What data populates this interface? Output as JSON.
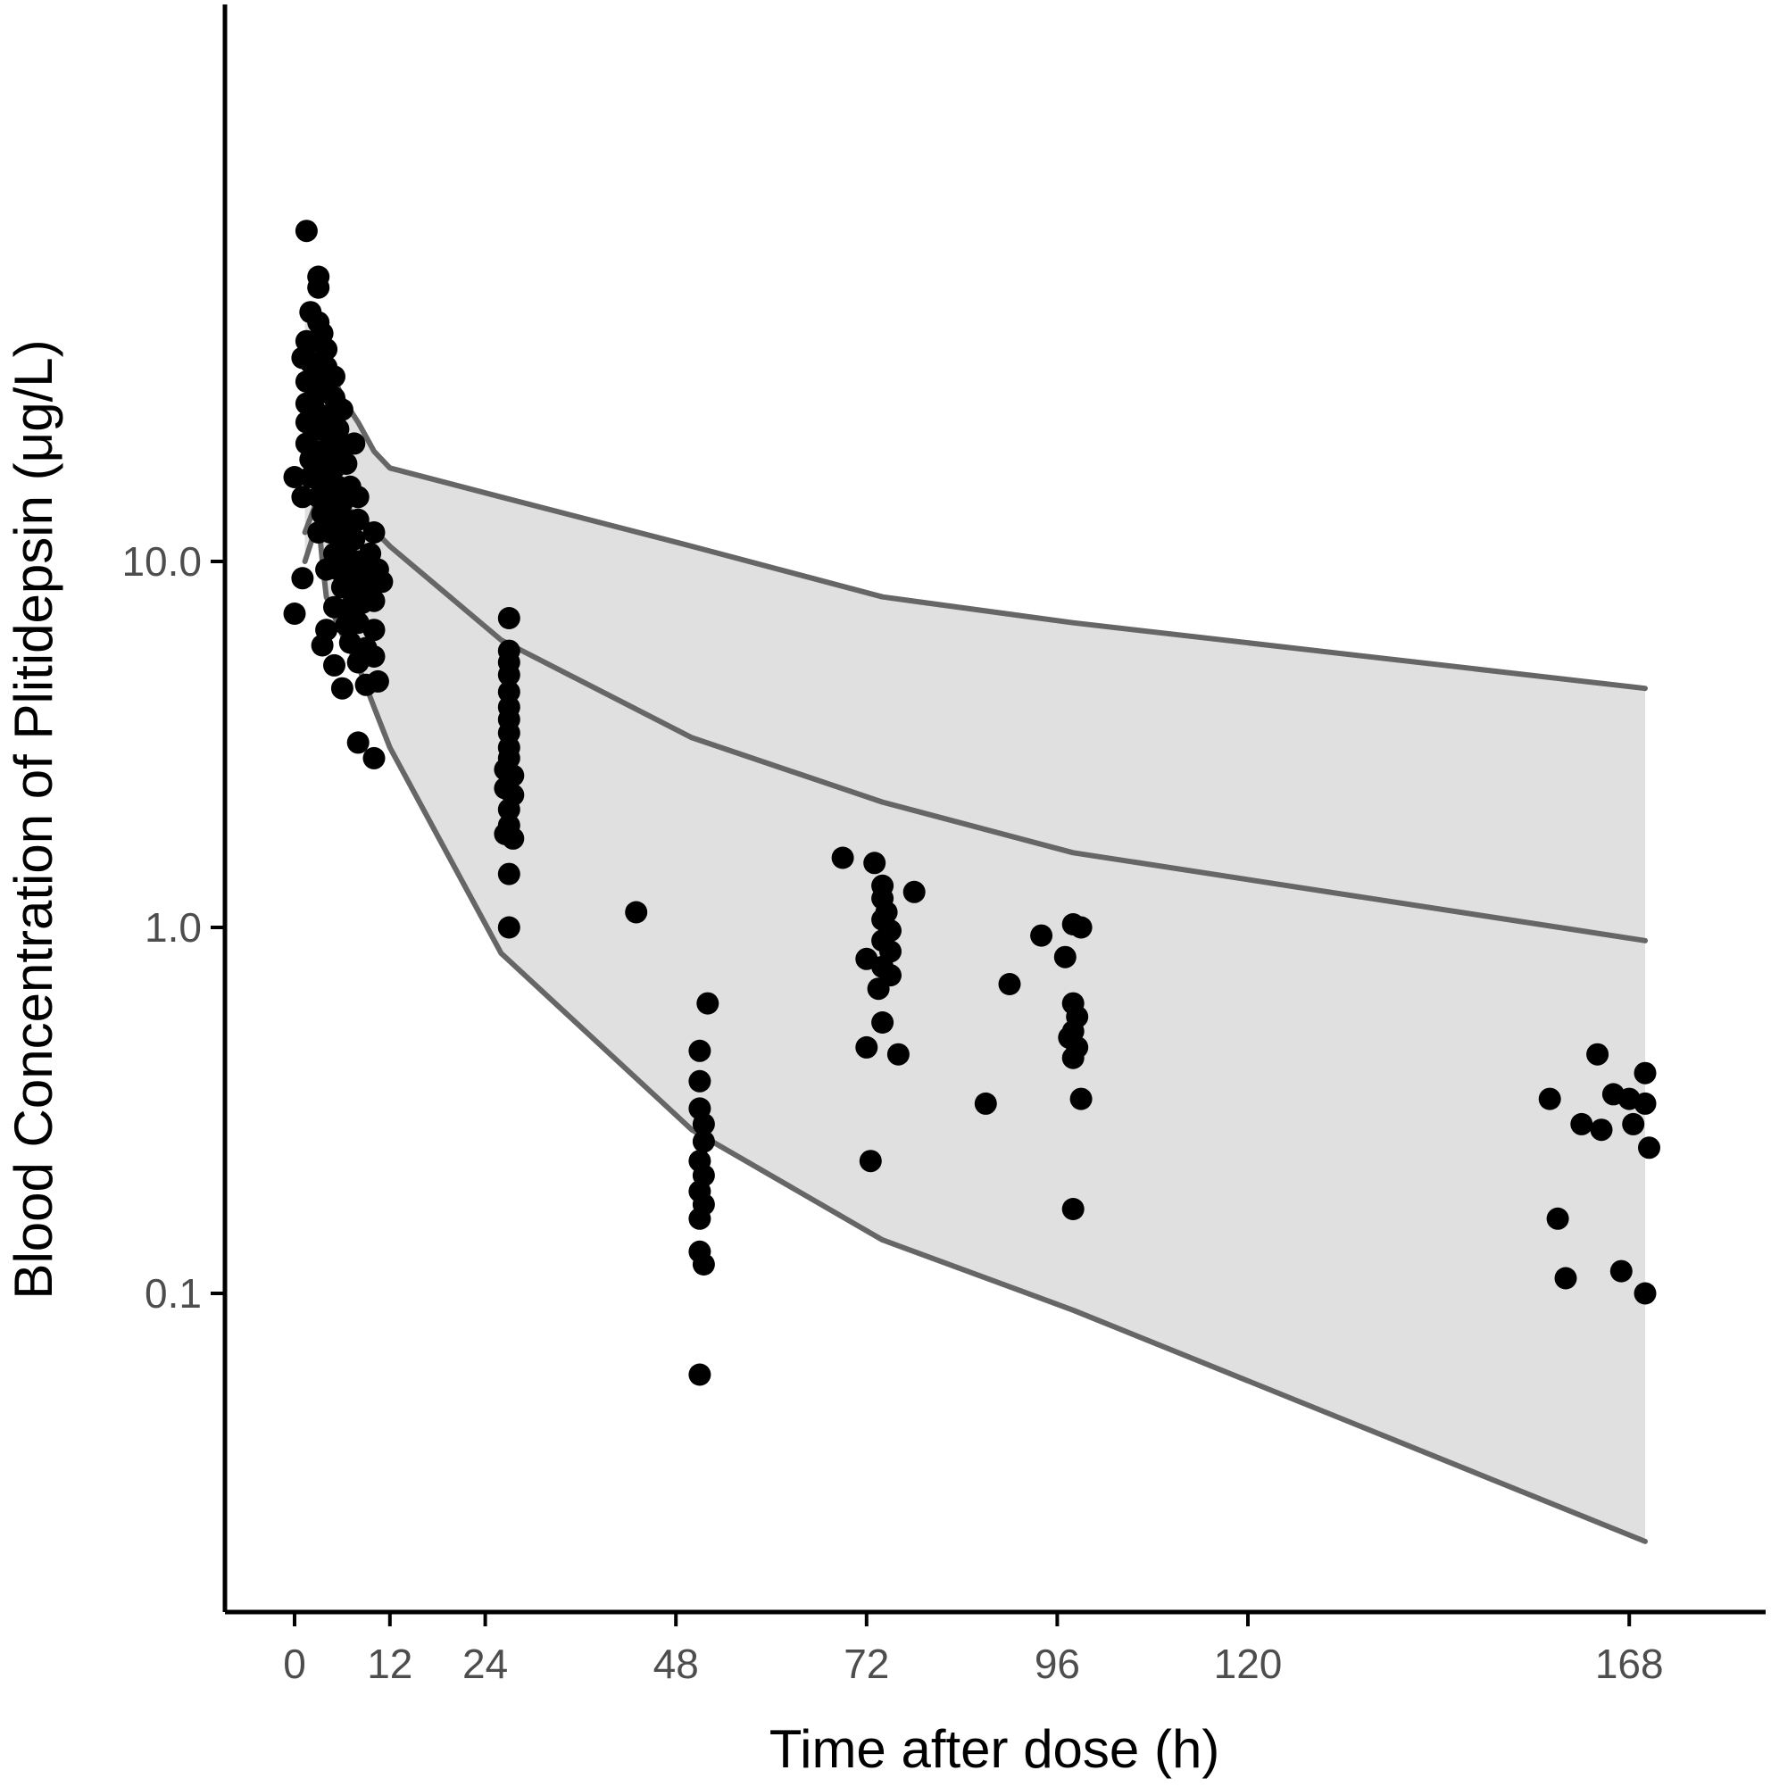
{
  "chart_data": {
    "type": "scatter",
    "title": "",
    "xlabel": "Time after dose (h)",
    "ylabel": "Blood Concentration of Plitidepsin (μg/L)",
    "xlim": [
      -7,
      184
    ],
    "ylim": [
      0.016,
      150
    ],
    "y_scale": "log",
    "grid": false,
    "legend": "none",
    "x_ticks": [
      {
        "value": 0,
        "label": "0"
      },
      {
        "value": 12,
        "label": "12"
      },
      {
        "value": 24,
        "label": "24"
      },
      {
        "value": 48,
        "label": "48"
      },
      {
        "value": 72,
        "label": "72"
      },
      {
        "value": 96,
        "label": "96"
      },
      {
        "value": 120,
        "label": "120"
      },
      {
        "value": 168,
        "label": "168"
      }
    ],
    "y_ticks": [
      {
        "value": 0.1,
        "label": "0.1"
      },
      {
        "value": 1,
        "label": "1.0"
      },
      {
        "value": 10,
        "label": "10.0"
      }
    ],
    "colors": {
      "band_fill": "#e0e0e0",
      "line": "#666666",
      "points": "#000000",
      "axis": "#000000",
      "tick_text": "#4d4d4d"
    },
    "prediction_band": {
      "upper": [
        {
          "x": 1.3,
          "y": 46
        },
        {
          "x": 3,
          "y": 48
        },
        {
          "x": 4,
          "y": 36
        },
        {
          "x": 6,
          "y": 28
        },
        {
          "x": 8,
          "y": 24
        },
        {
          "x": 10,
          "y": 20
        },
        {
          "x": 12,
          "y": 18
        },
        {
          "x": 26,
          "y": 15
        },
        {
          "x": 50,
          "y": 11
        },
        {
          "x": 74,
          "y": 8
        },
        {
          "x": 98,
          "y": 6.8
        },
        {
          "x": 170,
          "y": 4.5
        }
      ],
      "lower": [
        {
          "x": 1.3,
          "y": 10
        },
        {
          "x": 3,
          "y": 13
        },
        {
          "x": 3.5,
          "y": 10
        },
        {
          "x": 4,
          "y": 8
        },
        {
          "x": 6,
          "y": 6.3
        },
        {
          "x": 8,
          "y": 5.2
        },
        {
          "x": 10,
          "y": 4
        },
        {
          "x": 12,
          "y": 3.1
        },
        {
          "x": 26,
          "y": 0.85
        },
        {
          "x": 50,
          "y": 0.28
        },
        {
          "x": 74,
          "y": 0.14
        },
        {
          "x": 98,
          "y": 0.09
        },
        {
          "x": 170,
          "y": 0.021
        }
      ]
    },
    "median_line": [
      {
        "x": 1.3,
        "y": 12
      },
      {
        "x": 3,
        "y": 15
      },
      {
        "x": 6,
        "y": 14
      },
      {
        "x": 8,
        "y": 13.5
      },
      {
        "x": 12,
        "y": 11
      },
      {
        "x": 26,
        "y": 6.1
      },
      {
        "x": 50,
        "y": 3.3
      },
      {
        "x": 74,
        "y": 2.2
      },
      {
        "x": 98,
        "y": 1.6
      },
      {
        "x": 170,
        "y": 0.92
      }
    ],
    "observed": [
      {
        "x": 1.5,
        "y": 80
      },
      {
        "x": 3,
        "y": 60
      },
      {
        "x": 3,
        "y": 56
      },
      {
        "x": 2,
        "y": 48
      },
      {
        "x": 3,
        "y": 45
      },
      {
        "x": 3.5,
        "y": 42
      },
      {
        "x": 1.5,
        "y": 40
      },
      {
        "x": 2.5,
        "y": 40
      },
      {
        "x": 4,
        "y": 38
      },
      {
        "x": 1,
        "y": 36
      },
      {
        "x": 2,
        "y": 35
      },
      {
        "x": 3,
        "y": 33
      },
      {
        "x": 4,
        "y": 34
      },
      {
        "x": 5,
        "y": 32
      },
      {
        "x": 1.5,
        "y": 31
      },
      {
        "x": 2.5,
        "y": 30
      },
      {
        "x": 3.5,
        "y": 29
      },
      {
        "x": 5,
        "y": 28
      },
      {
        "x": 1.5,
        "y": 27
      },
      {
        "x": 2.5,
        "y": 26
      },
      {
        "x": 4,
        "y": 25
      },
      {
        "x": 6,
        "y": 26
      },
      {
        "x": 1.5,
        "y": 24
      },
      {
        "x": 3,
        "y": 23
      },
      {
        "x": 4.5,
        "y": 22
      },
      {
        "x": 5.5,
        "y": 23
      },
      {
        "x": 1.5,
        "y": 21
      },
      {
        "x": 3,
        "y": 20
      },
      {
        "x": 4.5,
        "y": 20
      },
      {
        "x": 6,
        "y": 21
      },
      {
        "x": 7.5,
        "y": 21
      },
      {
        "x": 2,
        "y": 19
      },
      {
        "x": 3.5,
        "y": 18
      },
      {
        "x": 5,
        "y": 18
      },
      {
        "x": 6.5,
        "y": 18.5
      },
      {
        "x": 0,
        "y": 17
      },
      {
        "x": 2,
        "y": 17
      },
      {
        "x": 4,
        "y": 16.5
      },
      {
        "x": 5.5,
        "y": 16
      },
      {
        "x": 7,
        "y": 16
      },
      {
        "x": 1,
        "y": 15
      },
      {
        "x": 3,
        "y": 15
      },
      {
        "x": 4.5,
        "y": 14.5
      },
      {
        "x": 6,
        "y": 14.5
      },
      {
        "x": 8,
        "y": 15
      },
      {
        "x": 3.5,
        "y": 13.5
      },
      {
        "x": 5,
        "y": 13
      },
      {
        "x": 6.5,
        "y": 13
      },
      {
        "x": 8,
        "y": 13
      },
      {
        "x": 3,
        "y": 12
      },
      {
        "x": 4.5,
        "y": 12
      },
      {
        "x": 6,
        "y": 11.5
      },
      {
        "x": 7.5,
        "y": 11.5
      },
      {
        "x": 10,
        "y": 12
      },
      {
        "x": 5,
        "y": 10.5
      },
      {
        "x": 6.5,
        "y": 10.5
      },
      {
        "x": 8,
        "y": 10
      },
      {
        "x": 9.5,
        "y": 10.5
      },
      {
        "x": 1,
        "y": 9
      },
      {
        "x": 4,
        "y": 9.5
      },
      {
        "x": 5.5,
        "y": 9.5
      },
      {
        "x": 7,
        "y": 9
      },
      {
        "x": 8.5,
        "y": 9
      },
      {
        "x": 10.5,
        "y": 9.5
      },
      {
        "x": 6,
        "y": 8.5
      },
      {
        "x": 8,
        "y": 8.3
      },
      {
        "x": 9.5,
        "y": 8.5
      },
      {
        "x": 11,
        "y": 8.8
      },
      {
        "x": 0,
        "y": 7.2
      },
      {
        "x": 5,
        "y": 7.5
      },
      {
        "x": 7,
        "y": 7.5
      },
      {
        "x": 8.5,
        "y": 7.7
      },
      {
        "x": 10,
        "y": 7.8
      },
      {
        "x": 4,
        "y": 6.5
      },
      {
        "x": 6.5,
        "y": 6.7
      },
      {
        "x": 8,
        "y": 6.8
      },
      {
        "x": 10,
        "y": 6.5
      },
      {
        "x": 3.5,
        "y": 5.9
      },
      {
        "x": 7,
        "y": 6
      },
      {
        "x": 9,
        "y": 5.8
      },
      {
        "x": 5,
        "y": 5.2
      },
      {
        "x": 8,
        "y": 5.3
      },
      {
        "x": 10,
        "y": 5.5
      },
      {
        "x": 6,
        "y": 4.5
      },
      {
        "x": 9,
        "y": 4.6
      },
      {
        "x": 10.5,
        "y": 4.7
      },
      {
        "x": 8,
        "y": 3.2
      },
      {
        "x": 10,
        "y": 2.9
      },
      {
        "x": 27,
        "y": 7.0
      },
      {
        "x": 27,
        "y": 5.7
      },
      {
        "x": 27,
        "y": 5.3
      },
      {
        "x": 27,
        "y": 4.9
      },
      {
        "x": 27,
        "y": 4.4
      },
      {
        "x": 27,
        "y": 4.0
      },
      {
        "x": 27,
        "y": 3.7
      },
      {
        "x": 27,
        "y": 3.4
      },
      {
        "x": 27,
        "y": 3.1
      },
      {
        "x": 27,
        "y": 2.9
      },
      {
        "x": 26.5,
        "y": 2.7
      },
      {
        "x": 27.5,
        "y": 2.6
      },
      {
        "x": 26.5,
        "y": 2.4
      },
      {
        "x": 27.5,
        "y": 2.3
      },
      {
        "x": 27,
        "y": 2.1
      },
      {
        "x": 27,
        "y": 1.9
      },
      {
        "x": 26.5,
        "y": 1.8
      },
      {
        "x": 27.5,
        "y": 1.75
      },
      {
        "x": 27,
        "y": 1.4
      },
      {
        "x": 27,
        "y": 1.0
      },
      {
        "x": 43,
        "y": 1.1
      },
      {
        "x": 52,
        "y": 0.62
      },
      {
        "x": 51,
        "y": 0.46
      },
      {
        "x": 51,
        "y": 0.38
      },
      {
        "x": 51,
        "y": 0.32
      },
      {
        "x": 51.5,
        "y": 0.29
      },
      {
        "x": 51.5,
        "y": 0.26
      },
      {
        "x": 51,
        "y": 0.23
      },
      {
        "x": 51.5,
        "y": 0.21
      },
      {
        "x": 51,
        "y": 0.19
      },
      {
        "x": 51.5,
        "y": 0.175
      },
      {
        "x": 51,
        "y": 0.16
      },
      {
        "x": 51,
        "y": 0.13
      },
      {
        "x": 51.5,
        "y": 0.12
      },
      {
        "x": 51,
        "y": 0.06
      },
      {
        "x": 69,
        "y": 1.55
      },
      {
        "x": 73,
        "y": 1.5
      },
      {
        "x": 74,
        "y": 1.3
      },
      {
        "x": 74,
        "y": 1.2
      },
      {
        "x": 78,
        "y": 1.25
      },
      {
        "x": 74.5,
        "y": 1.1
      },
      {
        "x": 74,
        "y": 1.05
      },
      {
        "x": 75,
        "y": 0.98
      },
      {
        "x": 74,
        "y": 0.92
      },
      {
        "x": 75,
        "y": 0.86
      },
      {
        "x": 72,
        "y": 0.82
      },
      {
        "x": 74,
        "y": 0.78
      },
      {
        "x": 75,
        "y": 0.74
      },
      {
        "x": 73.5,
        "y": 0.68
      },
      {
        "x": 74,
        "y": 0.55
      },
      {
        "x": 72,
        "y": 0.47
      },
      {
        "x": 76,
        "y": 0.45
      },
      {
        "x": 72.5,
        "y": 0.23
      },
      {
        "x": 94,
        "y": 0.95
      },
      {
        "x": 90,
        "y": 0.7
      },
      {
        "x": 87,
        "y": 0.33
      },
      {
        "x": 98,
        "y": 1.02
      },
      {
        "x": 99,
        "y": 1.0
      },
      {
        "x": 97,
        "y": 0.83
      },
      {
        "x": 98,
        "y": 0.62
      },
      {
        "x": 98.5,
        "y": 0.57
      },
      {
        "x": 98,
        "y": 0.52
      },
      {
        "x": 97.5,
        "y": 0.5
      },
      {
        "x": 98.5,
        "y": 0.47
      },
      {
        "x": 98,
        "y": 0.44
      },
      {
        "x": 99,
        "y": 0.34
      },
      {
        "x": 98,
        "y": 0.17
      },
      {
        "x": 164,
        "y": 0.45
      },
      {
        "x": 170,
        "y": 0.4
      },
      {
        "x": 166,
        "y": 0.35
      },
      {
        "x": 168,
        "y": 0.34
      },
      {
        "x": 158,
        "y": 0.34
      },
      {
        "x": 170,
        "y": 0.33
      },
      {
        "x": 162,
        "y": 0.29
      },
      {
        "x": 164.5,
        "y": 0.28
      },
      {
        "x": 168.5,
        "y": 0.29
      },
      {
        "x": 170.5,
        "y": 0.25
      },
      {
        "x": 159,
        "y": 0.16
      },
      {
        "x": 160,
        "y": 0.11
      },
      {
        "x": 167,
        "y": 0.115
      },
      {
        "x": 170,
        "y": 0.1
      }
    ]
  }
}
